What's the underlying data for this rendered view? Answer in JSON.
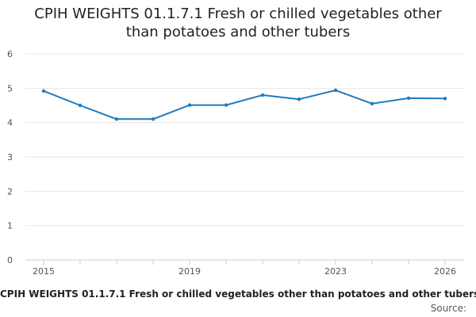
{
  "chart_data": {
    "type": "line",
    "title_lines": [
      "CPIH WEIGHTS 01.1.7.1 Fresh or chilled vegetables other",
      "than potatoes and other tubers"
    ],
    "footer_title": "CPIH WEIGHTS 01.1.7.1 Fresh or chilled vegetables other than potatoes and other tubers",
    "source_label": "Source:",
    "x": [
      2015,
      2016,
      2017,
      2018,
      2019,
      2020,
      2021,
      2022,
      2023,
      2024,
      2025,
      2026
    ],
    "values": [
      4.92,
      4.5,
      4.1,
      4.1,
      4.51,
      4.51,
      4.8,
      4.68,
      4.94,
      4.55,
      4.71,
      4.7
    ],
    "x_tick_labels": [
      "2015",
      "2019",
      "2023",
      "2026"
    ],
    "y_ticks": [
      "0",
      "1",
      "2",
      "3",
      "4",
      "5",
      "6"
    ],
    "ylim": [
      0,
      6
    ],
    "xlabel": "",
    "ylabel": "",
    "grid": true,
    "series_color": "#1f7bbf"
  }
}
